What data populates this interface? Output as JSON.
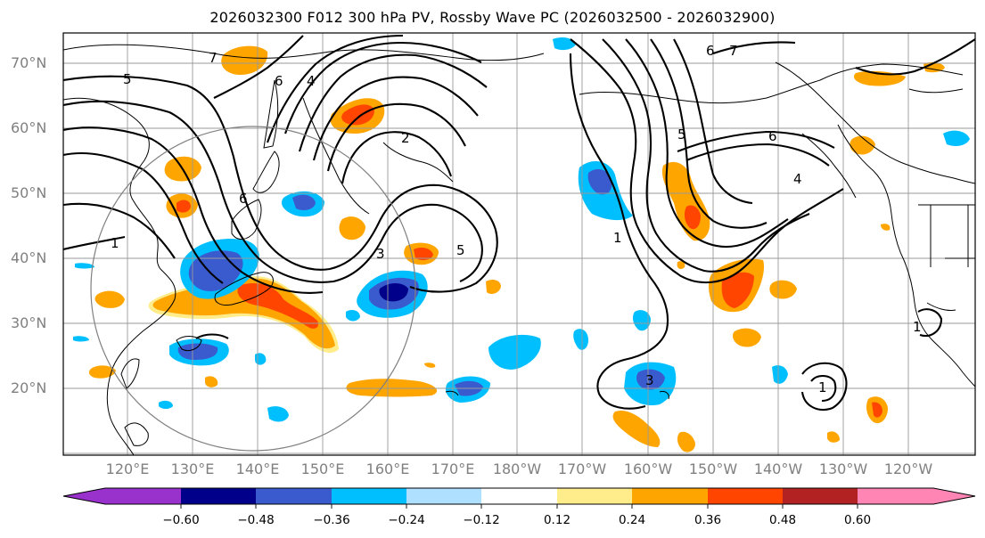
{
  "title": "2026032300 F012 300 hPa PV, Rossby Wave PC (2026032500 - 2026032900)",
  "map": {
    "lat_labels": [
      "70°N",
      "60°N",
      "50°N",
      "40°N",
      "30°N",
      "20°N"
    ],
    "lon_labels": [
      "120°E",
      "130°E",
      "140°E",
      "150°E",
      "160°E",
      "170°E",
      "180°W",
      "170°W",
      "160°W",
      "150°W",
      "140°W",
      "130°W",
      "120°W"
    ],
    "contour_labels": [
      "5",
      "7",
      "6",
      "4",
      "1",
      "6",
      "3",
      "2",
      "5",
      "6",
      "7",
      "5",
      "6",
      "4",
      "3",
      "1",
      "1",
      "1"
    ]
  },
  "colorbar": {
    "tick_labels": [
      "−0.60",
      "−0.48",
      "−0.36",
      "−0.24",
      "−0.12",
      "0.12",
      "0.24",
      "0.36",
      "0.48",
      "0.60"
    ],
    "colors": [
      "#9932cc",
      "#00008b",
      "#3a5bcd",
      "#00bfff",
      "#b0e0ff",
      "#ffffff",
      "#ffec8b",
      "#ffa500",
      "#ff4500",
      "#b22222",
      "#ff85b5"
    ]
  }
}
